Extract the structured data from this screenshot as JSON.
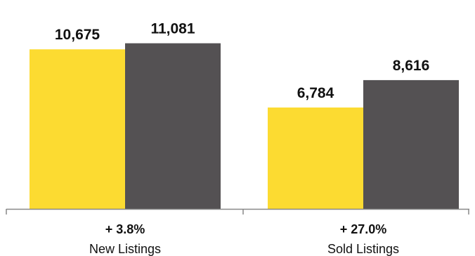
{
  "chart_data": {
    "type": "bar",
    "categories": [
      "New Listings",
      "Sold Listings"
    ],
    "changes": [
      "+ 3.8%",
      "+ 27.0%"
    ],
    "series": [
      {
        "values": [
          10675,
          6784
        ],
        "labels": [
          "10,675",
          "6,784"
        ],
        "color": "#fcdb31"
      },
      {
        "values": [
          11081,
          8616
        ],
        "labels": [
          "11,081",
          "8,616"
        ],
        "color": "#545153"
      }
    ],
    "ylim": [
      0,
      12000
    ],
    "grid": false,
    "axis_color": "#888888"
  }
}
